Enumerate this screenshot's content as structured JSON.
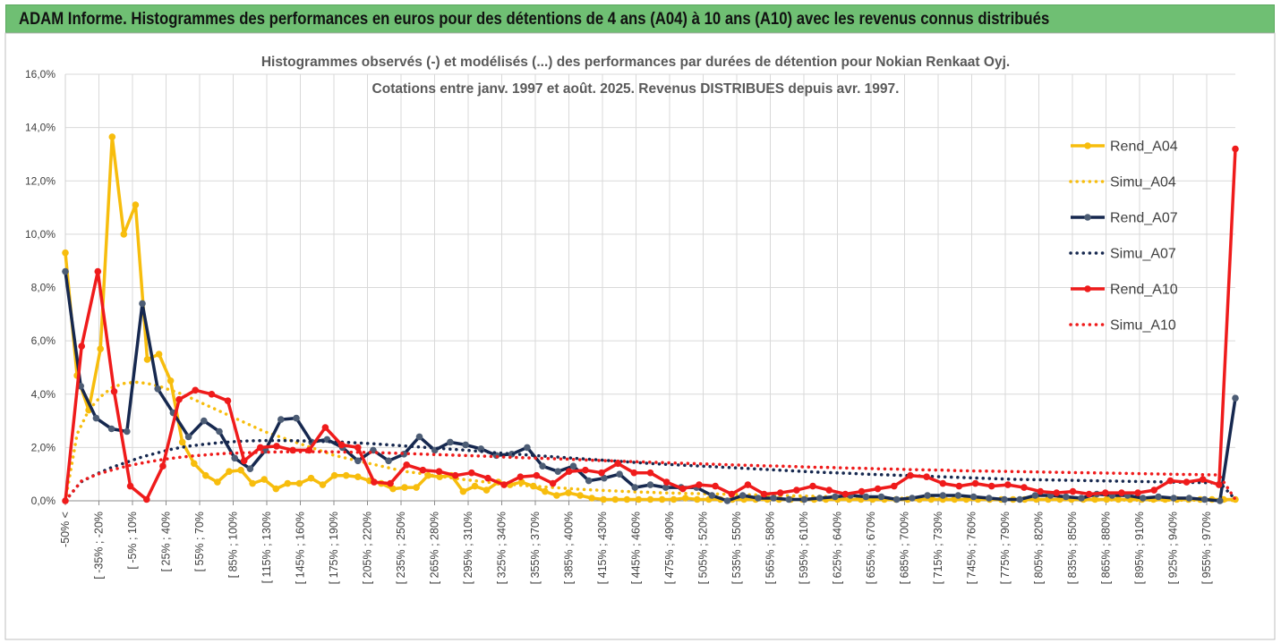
{
  "banner": {
    "title": "ADAM Informe. Histogrammes des performances en euros pour des détentions de 4 ans (A04) à 10 ans (A10) avec les revenus connus distribués"
  },
  "colors": {
    "banner_bg": "#6fbf73",
    "A04": "#f7bd0d",
    "A07": "#16284f",
    "A10": "#ef1b1b",
    "grid": "#d9d9d9"
  },
  "chart_data": {
    "type": "line",
    "title": "Histogrammes observés (-) et modélisés (...) des performances par durées de détention pour Nokian Renkaat Oyj.",
    "subtitle": "Cotations entre janv. 1997 et août. 2025. Revenus DISTRIBUES depuis avr. 1997.",
    "xlabel": "",
    "ylabel": "",
    "ylim": [
      0,
      16
    ],
    "yticks": [
      "0,0%",
      "2,0%",
      "4,0%",
      "6,0%",
      "8,0%",
      "10,0%",
      "12,0%",
      "14,0%",
      "16,0%"
    ],
    "grid": true,
    "legend_position": "top-right",
    "x_labels_shown": [
      "-50% <",
      "[ -35% ; -20%",
      "[ -5% ; 10%",
      "[ 25% ; 40%",
      "[ 55% ; 70%",
      "[ 85% ; 100%",
      "[ 115% ; 130%",
      "[ 145% ; 160%",
      "[ 175% ; 190%",
      "[ 205% ; 220%",
      "[ 235% ; 250%",
      "[ 265% ; 280%",
      "[ 295% ; 310%",
      "[ 325% ; 340%",
      "[ 355% ; 370%",
      "[ 385% ; 400%",
      "[ 415% ; 430%",
      "[ 445% ; 460%",
      "[ 475% ; 490%",
      "[ 505% ; 520%",
      "[ 535% ; 550%",
      "[ 565% ; 580%",
      "[ 595% ; 610%",
      "[ 625% ; 640%",
      "[ 655% ; 670%",
      "[ 685% ; 700%",
      "[ 715% ; 730%",
      "[ 745% ; 760%",
      "[ 775% ; 790%",
      "[ 805% ; 820%",
      "[ 835% ; 850%",
      "[ 865% ; 880%",
      "[ 895% ; 910%",
      "[ 925% ; 940%",
      "[ 955% ; 970%"
    ],
    "series": [
      {
        "name": "Rend_A04",
        "style": "solid",
        "color": "#f7bd0d",
        "values": [
          9.3,
          4.7,
          3.4,
          5.7,
          13.65,
          10.0,
          11.1,
          5.3,
          5.5,
          4.5,
          2.2,
          1.4,
          0.95,
          0.7,
          1.1,
          1.15,
          0.65,
          0.8,
          0.45,
          0.65,
          0.65,
          0.85,
          0.6,
          0.95,
          0.95,
          0.9,
          0.75,
          0.65,
          0.45,
          0.5,
          0.5,
          0.95,
          0.9,
          0.95,
          0.35,
          0.55,
          0.4,
          0.7,
          0.6,
          0.7,
          0.55,
          0.35,
          0.2,
          0.3,
          0.2,
          0.1,
          0.05,
          0.05,
          0.05,
          0.05,
          0.05,
          0.05,
          0.05,
          0.1,
          0.05,
          0.05,
          0.05,
          0.05,
          0.05,
          0.05,
          0.05,
          0.05,
          0.05,
          0.05,
          0.05,
          0.05,
          0.05,
          0.05,
          0.05,
          0.05,
          0.05,
          0.05,
          0.05,
          0.05,
          0.05,
          0.05,
          0.05,
          0.05,
          0.05,
          0.05,
          0.05,
          0.05,
          0.05,
          0.05,
          0.05,
          0.05,
          0.05,
          0.05,
          0.05,
          0.05,
          0.05,
          0.05,
          0.05,
          0.05,
          0.05,
          0.05,
          0.05,
          0.05,
          0.05,
          0.05,
          0.05
        ]
      },
      {
        "name": "Simu_A04",
        "style": "dotted",
        "color": "#f7bd0d",
        "values": [
          0.0,
          2.5,
          3.4,
          3.9,
          4.25,
          4.4,
          4.45,
          4.4,
          4.3,
          4.15,
          4.0,
          3.8,
          3.6,
          3.4,
          3.2,
          3.0,
          2.8,
          2.6,
          2.45,
          2.3,
          2.15,
          2.0,
          1.85,
          1.7,
          1.6,
          1.5,
          1.4,
          1.3,
          1.2,
          1.1,
          1.05,
          0.98,
          0.92,
          0.86,
          0.8,
          0.75,
          0.7,
          0.66,
          0.62,
          0.58,
          0.55,
          0.52,
          0.49,
          0.46,
          0.43,
          0.41,
          0.39,
          0.37,
          0.35,
          0.33,
          0.32,
          0.3,
          0.29,
          0.28,
          0.27,
          0.26,
          0.25,
          0.24,
          0.23,
          0.22,
          0.21,
          0.2,
          0.19,
          0.18,
          0.17,
          0.16,
          0.15,
          0.14,
          0.13,
          0.12,
          0.11,
          0.1,
          0.1,
          0.09,
          0.09,
          0.08,
          0.08,
          0.07,
          0.07,
          0.06,
          0.06,
          0.05,
          0.05,
          0.05,
          0.04,
          0.04,
          0.04,
          0.03,
          0.03,
          0.03,
          0.03,
          0.02,
          0.02,
          0.02,
          0.02,
          0.02,
          0.02,
          0.02,
          0.02,
          0.02,
          0.01
        ]
      },
      {
        "name": "Rend_A07",
        "style": "solid",
        "color": "#16284f",
        "values": [
          8.6,
          4.3,
          3.1,
          2.7,
          2.6,
          7.4,
          4.2,
          3.3,
          2.4,
          3.0,
          2.6,
          1.6,
          1.2,
          1.9,
          3.05,
          3.1,
          2.2,
          2.3,
          2.0,
          1.5,
          1.9,
          1.5,
          1.75,
          2.4,
          1.9,
          2.2,
          2.1,
          1.95,
          1.7,
          1.75,
          2.0,
          1.3,
          1.1,
          1.3,
          0.75,
          0.85,
          1.0,
          0.5,
          0.6,
          0.5,
          0.5,
          0.5,
          0.2,
          0.0,
          0.2,
          0.1,
          0.1,
          0.05,
          0.05,
          0.1,
          0.15,
          0.2,
          0.15,
          0.15,
          0.05,
          0.1,
          0.2,
          0.2,
          0.2,
          0.15,
          0.1,
          0.05,
          0.05,
          0.2,
          0.2,
          0.15,
          0.1,
          0.25,
          0.2,
          0.2,
          0.1,
          0.15,
          0.1,
          0.1,
          0.05,
          0.0,
          3.85
        ]
      },
      {
        "name": "Simu_A07",
        "style": "dotted",
        "color": "#16284f",
        "values": [
          0.0,
          0.7,
          1.0,
          1.25,
          1.45,
          1.65,
          1.8,
          1.95,
          2.05,
          2.12,
          2.18,
          2.22,
          2.25,
          2.26,
          2.26,
          2.25,
          2.24,
          2.22,
          2.2,
          2.17,
          2.14,
          2.1,
          2.06,
          2.02,
          1.98,
          1.94,
          1.9,
          1.85,
          1.8,
          1.76,
          1.72,
          1.68,
          1.64,
          1.6,
          1.56,
          1.52,
          1.48,
          1.44,
          1.4,
          1.37,
          1.34,
          1.31,
          1.28,
          1.25,
          1.22,
          1.19,
          1.16,
          1.13,
          1.1,
          1.07,
          1.05,
          1.03,
          1.0,
          0.98,
          0.96,
          0.94,
          0.92,
          0.9,
          0.88,
          0.86,
          0.84,
          0.82,
          0.8,
          0.79,
          0.78,
          0.77,
          0.76,
          0.75,
          0.74,
          0.73,
          0.72,
          0.71,
          0.7,
          0.69,
          0.68,
          0.67,
          0.05
        ]
      },
      {
        "name": "Rend_A10",
        "style": "solid",
        "color": "#ef1b1b",
        "values": [
          0.0,
          5.8,
          8.6,
          4.1,
          0.55,
          0.05,
          1.3,
          3.8,
          4.15,
          4.0,
          3.75,
          1.5,
          2.0,
          2.05,
          1.9,
          1.9,
          2.75,
          2.1,
          2.0,
          0.7,
          0.65,
          1.35,
          1.15,
          1.1,
          0.95,
          1.05,
          0.85,
          0.6,
          0.9,
          0.95,
          0.65,
          1.1,
          1.15,
          1.05,
          1.4,
          1.05,
          1.05,
          0.7,
          0.45,
          0.6,
          0.55,
          0.25,
          0.6,
          0.25,
          0.3,
          0.4,
          0.55,
          0.4,
          0.25,
          0.35,
          0.45,
          0.55,
          0.95,
          0.9,
          0.65,
          0.55,
          0.65,
          0.55,
          0.6,
          0.5,
          0.35,
          0.3,
          0.35,
          0.25,
          0.3,
          0.3,
          0.3,
          0.4,
          0.75,
          0.7,
          0.8,
          0.6,
          13.2
        ]
      },
      {
        "name": "Simu_A10",
        "style": "dotted",
        "color": "#ef1b1b",
        "values": [
          0.0,
          0.75,
          1.0,
          1.18,
          1.33,
          1.45,
          1.55,
          1.63,
          1.69,
          1.74,
          1.78,
          1.8,
          1.82,
          1.83,
          1.84,
          1.84,
          1.84,
          1.83,
          1.82,
          1.81,
          1.79,
          1.77,
          1.75,
          1.73,
          1.71,
          1.69,
          1.67,
          1.64,
          1.62,
          1.6,
          1.58,
          1.56,
          1.53,
          1.51,
          1.49,
          1.47,
          1.45,
          1.43,
          1.41,
          1.39,
          1.37,
          1.35,
          1.33,
          1.31,
          1.3,
          1.28,
          1.26,
          1.25,
          1.23,
          1.22,
          1.2,
          1.19,
          1.17,
          1.16,
          1.15,
          1.13,
          1.12,
          1.11,
          1.1,
          1.09,
          1.08,
          1.07,
          1.06,
          1.05,
          1.04,
          1.03,
          1.02,
          1.01,
          1.0,
          0.99,
          0.98,
          0.97,
          0.05
        ]
      }
    ]
  }
}
